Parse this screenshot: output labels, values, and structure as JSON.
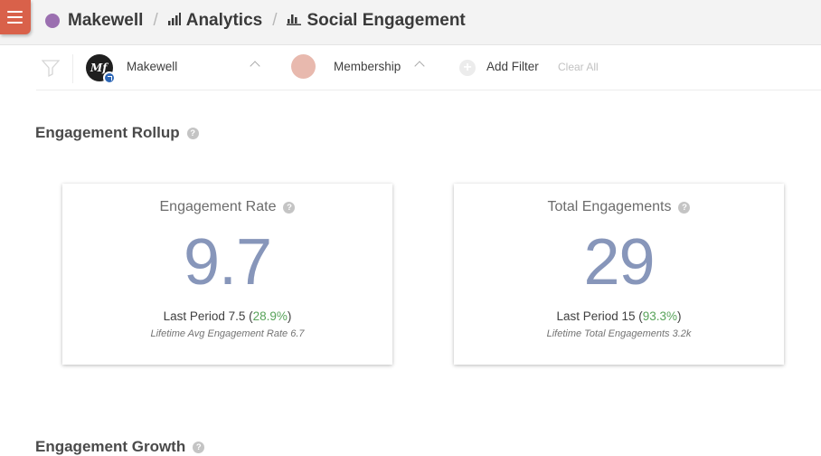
{
  "header": {
    "org": "Makewell",
    "separator": "/",
    "analytics": "Analytics",
    "page": "Social Engagement"
  },
  "filters": {
    "account": "Makewell",
    "membership": "Membership",
    "add_filter": "Add Filter",
    "clear_all": "Clear All"
  },
  "rollup": {
    "title": "Engagement Rollup",
    "help": "?"
  },
  "cards": [
    {
      "title": "Engagement Rate",
      "value": "9.7",
      "last_prefix": "Last Period 7.5 (",
      "last_pct": "28.9%",
      "last_suffix": ")",
      "lifetime": "Lifetime Avg Engagement Rate 6.7"
    },
    {
      "title": "Total Engagements",
      "value": "29",
      "last_prefix": "Last Period 15 (",
      "last_pct": "93.3%",
      "last_suffix": ")",
      "lifetime": "Lifetime Total Engagements 3.2k"
    }
  ],
  "growth": {
    "title": "Engagement Growth",
    "help": "?"
  },
  "colors": {
    "menu_button": "#d9614a",
    "org_dot": "#9b6fb0",
    "metric_value": "#8796ba",
    "positive_change": "#58a35a"
  },
  "icons": {
    "menu": "hamburger-icon",
    "analytics": "bar-chart-icon",
    "page": "bar-chart-icon",
    "filter": "funnel-icon",
    "add": "plus-circle-icon",
    "help": "question-circle-icon"
  }
}
